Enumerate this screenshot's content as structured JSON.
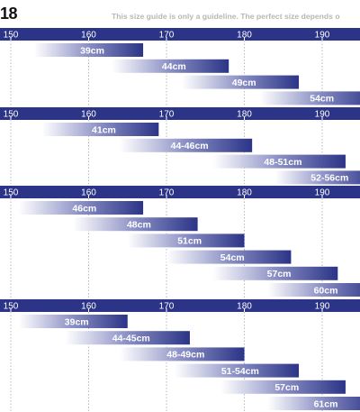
{
  "header": {
    "year_fragment": "18",
    "note": "This size guide is only a guideline. The perfect size depends o"
  },
  "colors": {
    "axis_band": "#2b3487",
    "bar_dark": "#2b3487",
    "bar_light": "#ffffff",
    "gridline": "#b9b9b9"
  },
  "chart_data": [
    {
      "type": "bar",
      "orientation": "horizontal-range",
      "xlabel": "",
      "ticks": [
        150,
        160,
        170,
        180,
        190
      ],
      "bars": [
        {
          "label": "39cm",
          "start": 153,
          "end": 167
        },
        {
          "label": "44cm",
          "start": 163,
          "end": 178
        },
        {
          "label": "49cm",
          "start": 172,
          "end": 187
        },
        {
          "label": "54cm",
          "start": 182,
          "end": 197
        }
      ]
    },
    {
      "type": "bar",
      "orientation": "horizontal-range",
      "xlabel": "",
      "ticks": [
        150,
        160,
        170,
        180,
        190
      ],
      "bars": [
        {
          "label": "41cm",
          "start": 154,
          "end": 169
        },
        {
          "label": "44-46cm",
          "start": 164,
          "end": 181
        },
        {
          "label": "48-51cm",
          "start": 176,
          "end": 193
        },
        {
          "label": "52-56cm",
          "start": 184,
          "end": 197
        }
      ]
    },
    {
      "type": "bar",
      "orientation": "horizontal-range",
      "xlabel": "",
      "ticks": [
        150,
        160,
        170,
        180,
        190
      ],
      "bars": [
        {
          "label": "46cm",
          "start": 151,
          "end": 167
        },
        {
          "label": "48cm",
          "start": 158,
          "end": 174
        },
        {
          "label": "51cm",
          "start": 165,
          "end": 180
        },
        {
          "label": "54cm",
          "start": 170,
          "end": 186
        },
        {
          "label": "57cm",
          "start": 176,
          "end": 192
        },
        {
          "label": "60cm",
          "start": 183,
          "end": 197
        }
      ]
    },
    {
      "type": "bar",
      "orientation": "horizontal-range",
      "xlabel": "",
      "ticks": [
        150,
        160,
        170,
        180,
        190
      ],
      "bars": [
        {
          "label": "39cm",
          "start": 151,
          "end": 165
        },
        {
          "label": "44-45cm",
          "start": 157,
          "end": 173
        },
        {
          "label": "48-49cm",
          "start": 164,
          "end": 180
        },
        {
          "label": "51-54cm",
          "start": 171,
          "end": 187
        },
        {
          "label": "57cm",
          "start": 177,
          "end": 193
        },
        {
          "label": "61cm",
          "start": 183,
          "end": 197
        }
      ]
    }
  ]
}
